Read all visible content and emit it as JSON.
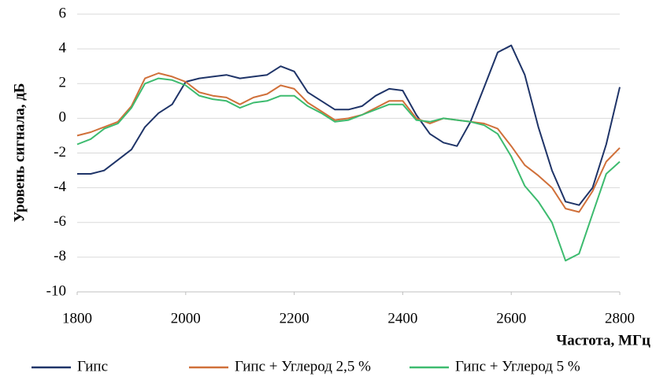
{
  "chart_data": {
    "type": "line",
    "xlabel": "Частота, МГц",
    "ylabel": "Уровень сигнала, дБ",
    "x": [
      1800,
      1825,
      1850,
      1875,
      1900,
      1925,
      1950,
      1975,
      2000,
      2025,
      2050,
      2075,
      2100,
      2125,
      2150,
      2175,
      2200,
      2225,
      2250,
      2275,
      2300,
      2325,
      2350,
      2375,
      2400,
      2425,
      2450,
      2475,
      2500,
      2525,
      2550,
      2575,
      2600,
      2625,
      2650,
      2675,
      2700,
      2725,
      2750,
      2775,
      2800
    ],
    "series": [
      {
        "name": "Гипс",
        "color": "#1f3468",
        "values": [
          -3.2,
          -3.2,
          -3.0,
          -2.4,
          -1.8,
          -0.5,
          0.3,
          0.8,
          2.1,
          2.3,
          2.4,
          2.5,
          2.3,
          2.4,
          2.5,
          3.0,
          2.7,
          1.5,
          1.0,
          0.5,
          0.5,
          0.7,
          1.3,
          1.7,
          1.6,
          0.2,
          -0.9,
          -1.4,
          -1.6,
          -0.2,
          1.8,
          3.8,
          4.2,
          2.5,
          -0.5,
          -3.0,
          -4.8,
          -5.0,
          -4.0,
          -1.5,
          1.8
        ]
      },
      {
        "name": "Гипс + Углерод 2,5 %",
        "color": "#d0703a",
        "values": [
          -1.0,
          -0.8,
          -0.5,
          -0.2,
          0.7,
          2.3,
          2.6,
          2.4,
          2.1,
          1.5,
          1.3,
          1.2,
          0.8,
          1.2,
          1.4,
          1.9,
          1.7,
          0.9,
          0.4,
          -0.1,
          0.0,
          0.2,
          0.6,
          1.0,
          1.0,
          0.0,
          -0.3,
          0.0,
          -0.1,
          -0.2,
          -0.3,
          -0.6,
          -1.6,
          -2.7,
          -3.3,
          -4.0,
          -5.2,
          -5.4,
          -4.2,
          -2.5,
          -1.7
        ]
      },
      {
        "name": "Гипс + Углерод 5 %",
        "color": "#3dbb6f",
        "values": [
          -1.5,
          -1.2,
          -0.6,
          -0.3,
          0.6,
          2.0,
          2.3,
          2.2,
          1.9,
          1.3,
          1.1,
          1.0,
          0.6,
          0.9,
          1.0,
          1.3,
          1.3,
          0.7,
          0.3,
          -0.2,
          -0.1,
          0.2,
          0.5,
          0.8,
          0.8,
          -0.1,
          -0.2,
          0.0,
          -0.1,
          -0.2,
          -0.4,
          -0.9,
          -2.2,
          -3.9,
          -4.8,
          -6.0,
          -8.2,
          -7.8,
          -5.5,
          -3.2,
          -2.5
        ]
      }
    ],
    "xlim": [
      1800,
      2800
    ],
    "xticks": [
      1800,
      2000,
      2200,
      2400,
      2600,
      2800
    ],
    "ylim": [
      -10,
      6
    ],
    "yticks": [
      -10,
      -8,
      -6,
      -4,
      -2,
      0,
      2,
      4,
      6
    ],
    "grid": true
  }
}
